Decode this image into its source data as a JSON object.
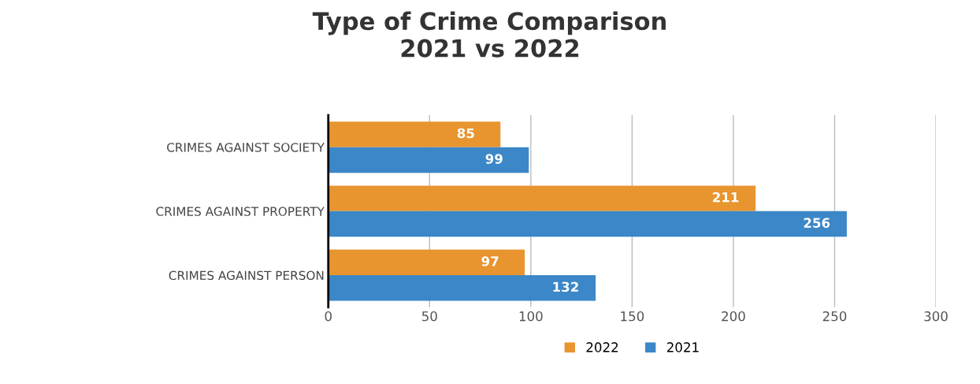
{
  "chart_data": {
    "type": "bar",
    "orientation": "horizontal",
    "title": "Type of Crime Comparison\n2021 vs 2022",
    "categories": [
      "CRIMES AGAINST SOCIETY",
      "CRIMES AGAINST PROPERTY",
      "CRIMES AGAINST PERSON"
    ],
    "series": [
      {
        "name": "2022",
        "color": "#e8952f",
        "values": [
          85,
          211,
          97
        ]
      },
      {
        "name": "2021",
        "color": "#3b87c7",
        "values": [
          99,
          256,
          132
        ]
      }
    ],
    "xlim": [
      0,
      300
    ],
    "xticks": [
      0,
      50,
      100,
      150,
      200,
      250,
      300
    ],
    "grid": "x",
    "legend": "bottom",
    "data_labels": true
  }
}
